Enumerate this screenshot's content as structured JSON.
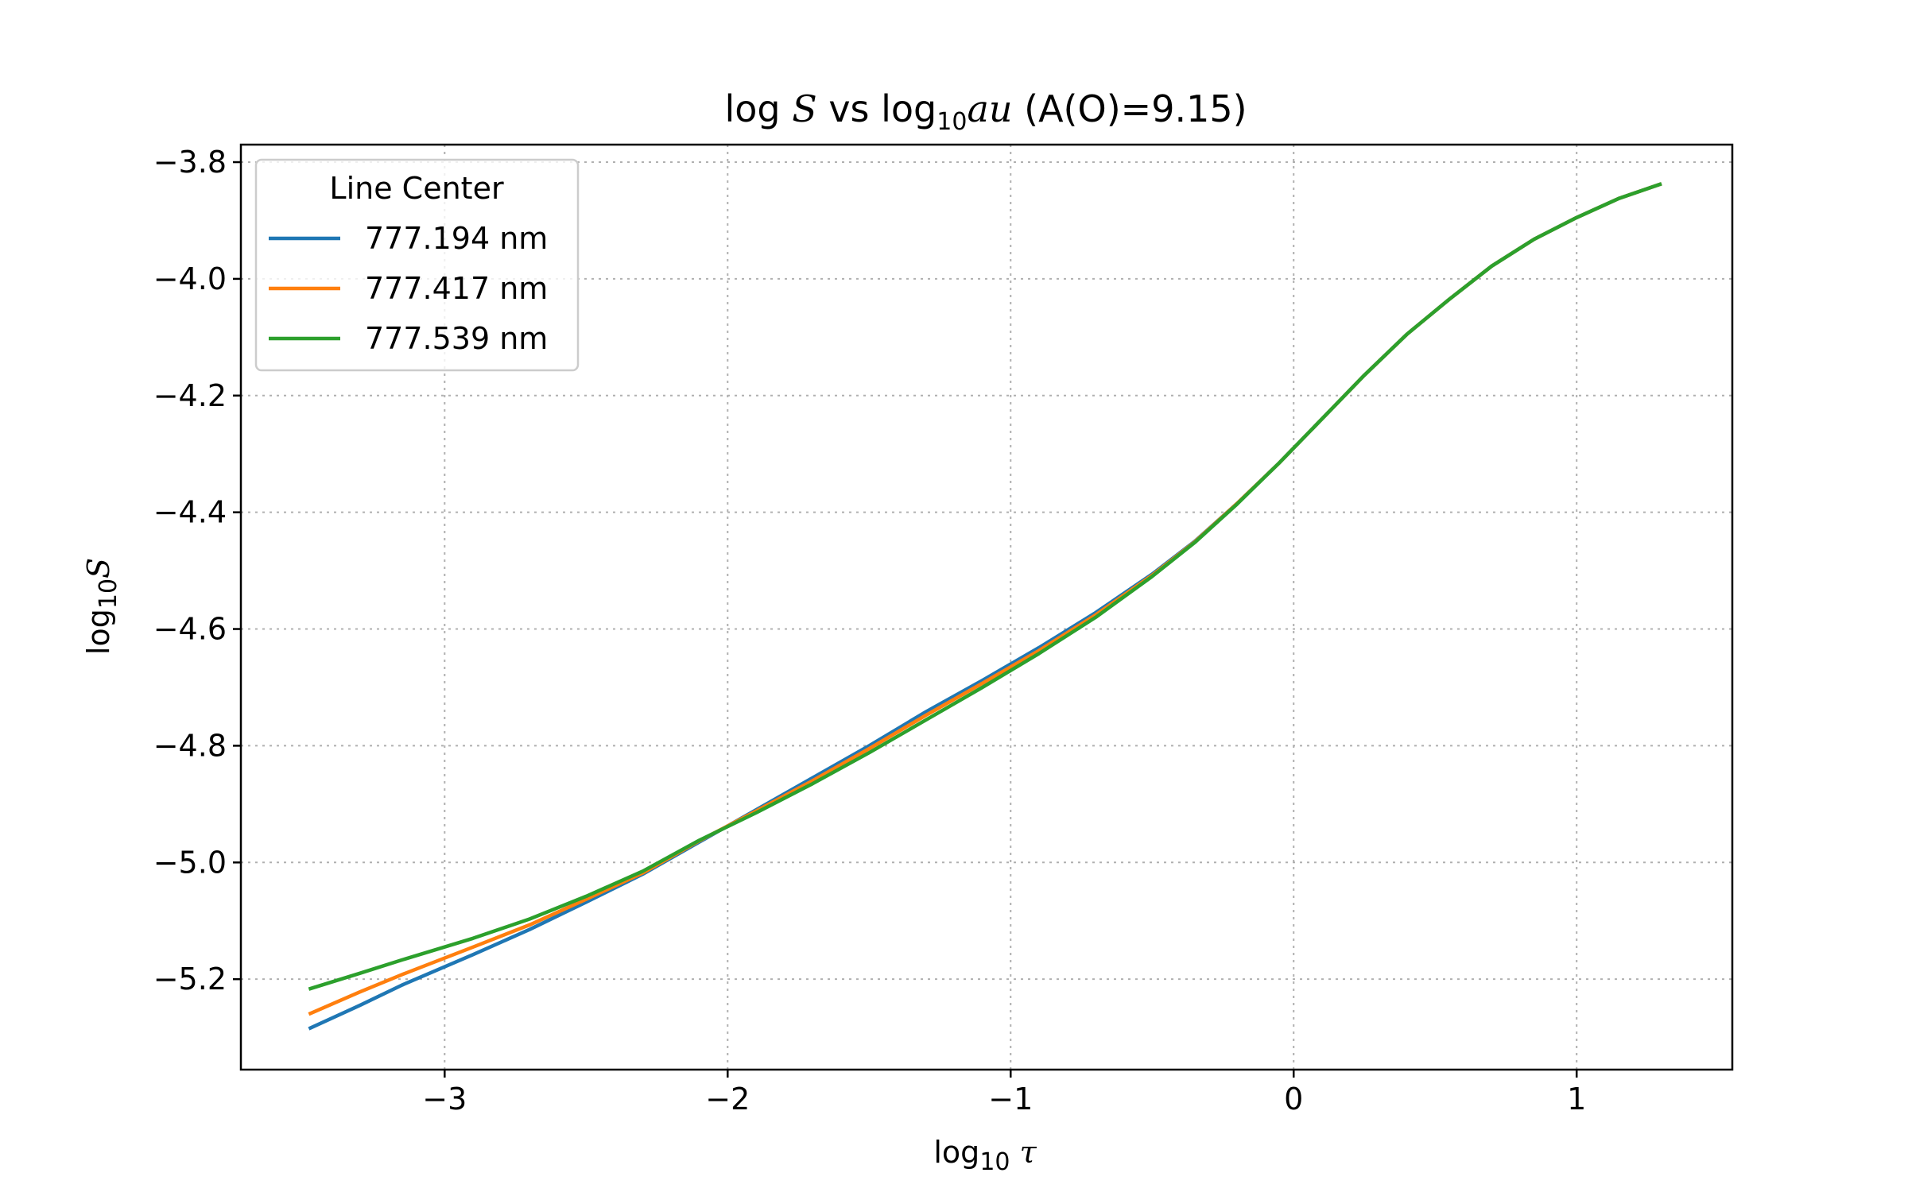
{
  "chart_data": {
    "type": "line",
    "title": {
      "prefix": "log ",
      "s": "S",
      "mid": " vs log",
      "sub": "10",
      "au": "au",
      "suffix": " (A(O)=9.15)"
    },
    "xlabel": {
      "main": "log",
      "sub": "10",
      "sym": "τ"
    },
    "ylabel": {
      "main": "log",
      "sub": "10",
      "sym": "S"
    },
    "xlim": [
      -3.72,
      1.55
    ],
    "ylim": [
      -5.355,
      -3.77
    ],
    "xticks": [
      -3,
      -2,
      -1,
      0,
      1
    ],
    "xtick_labels": [
      "−3",
      "−2",
      "−1",
      "0",
      "1"
    ],
    "yticks": [
      -3.8,
      -4.0,
      -4.2,
      -4.4,
      -4.6,
      -4.8,
      -5.0,
      -5.2
    ],
    "ytick_labels": [
      "−3.8",
      "−4.0",
      "−4.2",
      "−4.4",
      "−4.6",
      "−4.8",
      "−5.0",
      "−5.2"
    ],
    "grid": true,
    "legend": {
      "title": "Line Center",
      "placement": "top-left"
    },
    "series": [
      {
        "name": "777.194 nm",
        "color": "#1f77b4",
        "points": [
          [
            -3.48,
            -5.285
          ],
          [
            -3.3,
            -5.245
          ],
          [
            -3.15,
            -5.21
          ],
          [
            -2.9,
            -5.158
          ],
          [
            -2.7,
            -5.115
          ],
          [
            -2.5,
            -5.068
          ],
          [
            -2.3,
            -5.02
          ],
          [
            -2.1,
            -4.965
          ],
          [
            -1.9,
            -4.91
          ],
          [
            -1.7,
            -4.855
          ],
          [
            -1.5,
            -4.8
          ],
          [
            -1.3,
            -4.742
          ],
          [
            -1.1,
            -4.688
          ],
          [
            -0.9,
            -4.632
          ],
          [
            -0.7,
            -4.572
          ],
          [
            -0.5,
            -4.506
          ],
          [
            -0.35,
            -4.45
          ],
          [
            -0.2,
            -4.385
          ],
          [
            -0.05,
            -4.315
          ],
          [
            0.1,
            -4.24
          ],
          [
            0.25,
            -4.165
          ],
          [
            0.4,
            -4.095
          ],
          [
            0.55,
            -4.035
          ],
          [
            0.7,
            -3.978
          ],
          [
            0.85,
            -3.932
          ],
          [
            1.0,
            -3.895
          ],
          [
            1.15,
            -3.862
          ],
          [
            1.3,
            -3.837
          ]
        ]
      },
      {
        "name": "777.417 nm",
        "color": "#ff7f0e",
        "points": [
          [
            -3.48,
            -5.26
          ],
          [
            -3.3,
            -5.222
          ],
          [
            -3.15,
            -5.192
          ],
          [
            -2.9,
            -5.145
          ],
          [
            -2.7,
            -5.107
          ],
          [
            -2.5,
            -5.063
          ],
          [
            -2.3,
            -5.018
          ],
          [
            -2.1,
            -4.963
          ],
          [
            -1.9,
            -4.912
          ],
          [
            -1.7,
            -4.86
          ],
          [
            -1.5,
            -4.805
          ],
          [
            -1.3,
            -4.748
          ],
          [
            -1.1,
            -4.693
          ],
          [
            -0.9,
            -4.637
          ],
          [
            -0.7,
            -4.576
          ],
          [
            -0.5,
            -4.508
          ],
          [
            -0.35,
            -4.451
          ],
          [
            -0.2,
            -4.385
          ],
          [
            -0.05,
            -4.315
          ],
          [
            0.1,
            -4.24
          ],
          [
            0.25,
            -4.165
          ],
          [
            0.4,
            -4.095
          ],
          [
            0.55,
            -4.035
          ],
          [
            0.7,
            -3.978
          ],
          [
            0.85,
            -3.932
          ],
          [
            1.0,
            -3.895
          ],
          [
            1.15,
            -3.862
          ],
          [
            1.3,
            -3.837
          ]
        ]
      },
      {
        "name": "777.539 nm",
        "color": "#2ca02c",
        "points": [
          [
            -3.48,
            -5.217
          ],
          [
            -3.3,
            -5.19
          ],
          [
            -3.15,
            -5.167
          ],
          [
            -2.9,
            -5.13
          ],
          [
            -2.7,
            -5.097
          ],
          [
            -2.5,
            -5.058
          ],
          [
            -2.3,
            -5.015
          ],
          [
            -2.1,
            -4.962
          ],
          [
            -1.9,
            -4.915
          ],
          [
            -1.7,
            -4.865
          ],
          [
            -1.5,
            -4.812
          ],
          [
            -1.3,
            -4.756
          ],
          [
            -1.1,
            -4.7
          ],
          [
            -0.9,
            -4.642
          ],
          [
            -0.7,
            -4.58
          ],
          [
            -0.5,
            -4.51
          ],
          [
            -0.35,
            -4.452
          ],
          [
            -0.2,
            -4.386
          ],
          [
            -0.05,
            -4.315
          ],
          [
            0.1,
            -4.24
          ],
          [
            0.25,
            -4.165
          ],
          [
            0.4,
            -4.095
          ],
          [
            0.55,
            -4.035
          ],
          [
            0.7,
            -3.978
          ],
          [
            0.85,
            -3.932
          ],
          [
            1.0,
            -3.895
          ],
          [
            1.15,
            -3.862
          ],
          [
            1.3,
            -3.837
          ]
        ]
      }
    ]
  }
}
